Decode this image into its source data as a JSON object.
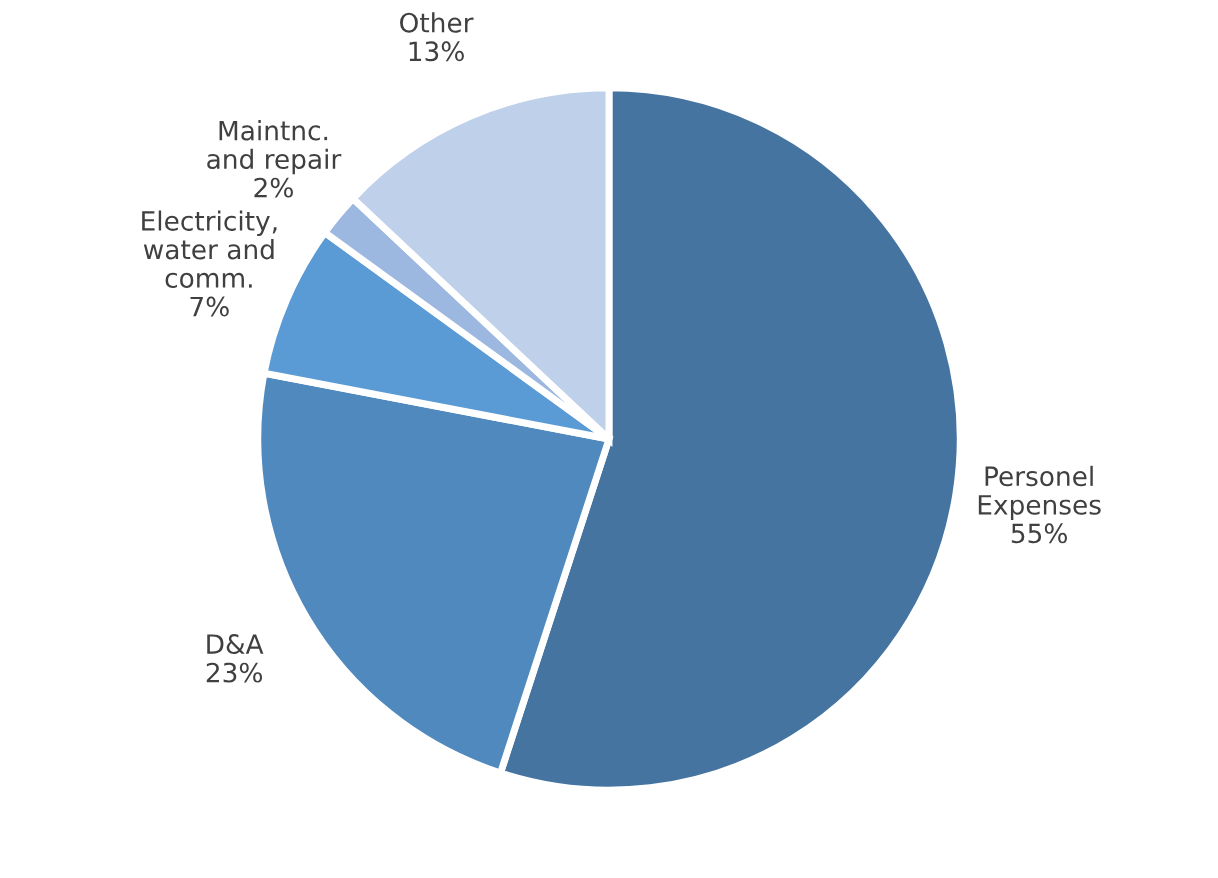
{
  "chart_data": {
    "type": "pie",
    "categories": [
      "Personel\nExpenses",
      "D&A",
      "Electricity,\nwater and\ncomm.",
      "Maintnc.\nand repair",
      "Other"
    ],
    "values": [
      55,
      23,
      7,
      2,
      13
    ],
    "colors": [
      "#44749f",
      "#4f89bd",
      "#5b9bd5",
      "#9db8e0",
      "#bfd0ea"
    ],
    "value_labels": [
      "55%",
      "23%",
      "7%",
      "2%",
      "13%"
    ]
  }
}
